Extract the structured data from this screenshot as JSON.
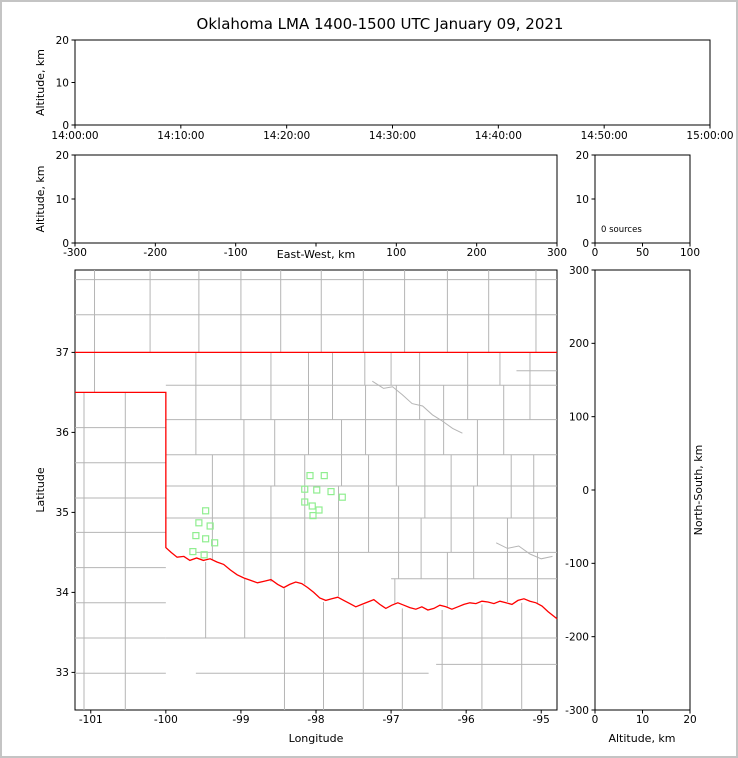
{
  "title": "Oklahoma LMA 1400-1500 UTC January 09, 2021",
  "colors": {
    "background": "#ffffff",
    "window_border": "#c4c4c4",
    "axes": "#000000",
    "county_lines": "#b5b5b5",
    "state_border": "#ff0000",
    "source_marker": "#90ee90"
  },
  "chart_data": [
    {
      "panel": "time-height",
      "type": "scatter",
      "ylabel": "Altitude, km",
      "ylim": [
        0,
        20
      ],
      "yticks": [
        0,
        10,
        20
      ],
      "xticks_time": [
        "14:00:00",
        "14:10:00",
        "14:20:00",
        "14:30:00",
        "14:40:00",
        "14:50:00",
        "15:00:00"
      ],
      "points": []
    },
    {
      "panel": "east-west-altitude",
      "type": "scatter",
      "xlabel": "East-West, km",
      "ylabel": "Altitude, km",
      "xlim": [
        -300,
        300
      ],
      "xticks": [
        -300,
        -200,
        -100,
        0,
        100,
        200,
        300
      ],
      "ylim": [
        0,
        20
      ],
      "yticks": [
        0,
        10,
        20
      ],
      "points": []
    },
    {
      "panel": "source-count-histogram",
      "type": "bar",
      "annotation": "0 sources",
      "xlim": [
        0,
        100
      ],
      "xticks": [
        0,
        50,
        100
      ],
      "ylim": [
        0,
        20
      ],
      "yticks": [
        0,
        10,
        20
      ],
      "values": []
    },
    {
      "panel": "plan-view-map",
      "type": "scatter",
      "xlabel": "Longitude",
      "ylabel": "Latitude",
      "xlim": [
        -101.21,
        -94.79
      ],
      "xticks": [
        -101,
        -100,
        -99,
        -98,
        -97,
        -96,
        -95
      ],
      "ylim": [
        32.53,
        38.03
      ],
      "yticks": [
        33,
        34,
        35,
        36,
        37
      ],
      "marker": "open-square",
      "points": [
        [
          -98.08,
          35.46
        ],
        [
          -97.89,
          35.46
        ],
        [
          -98.15,
          35.29
        ],
        [
          -97.99,
          35.28
        ],
        [
          -97.8,
          35.26
        ],
        [
          -97.65,
          35.19
        ],
        [
          -98.15,
          35.13
        ],
        [
          -98.05,
          35.08
        ],
        [
          -97.96,
          35.03
        ],
        [
          -98.04,
          34.96
        ],
        [
          -99.47,
          35.02
        ],
        [
          -99.56,
          34.87
        ],
        [
          -99.41,
          34.83
        ],
        [
          -99.6,
          34.71
        ],
        [
          -99.47,
          34.67
        ],
        [
          -99.35,
          34.62
        ],
        [
          -99.64,
          34.51
        ],
        [
          -99.49,
          34.47
        ]
      ]
    },
    {
      "panel": "altitude-north-south",
      "type": "scatter",
      "xlabel": "Altitude, km",
      "ylabel": "North-South, km",
      "xlim": [
        0,
        20
      ],
      "xticks": [
        0,
        10,
        20
      ],
      "ylim": [
        -300,
        300
      ],
      "yticks": [
        300,
        200,
        100,
        0,
        -100,
        -200,
        -300
      ],
      "points": []
    }
  ],
  "map_layers": {
    "state_border": [
      [
        [
          -101.21,
          37.0
        ],
        [
          -94.79,
          37.0
        ]
      ],
      [
        [
          -101.21,
          36.5
        ],
        [
          -100.0,
          36.5
        ],
        [
          -100.0,
          34.56
        ],
        [
          -99.93,
          34.5
        ],
        [
          -99.85,
          34.44
        ],
        [
          -99.76,
          34.45
        ],
        [
          -99.68,
          34.4
        ],
        [
          -99.59,
          34.43
        ],
        [
          -99.5,
          34.4
        ],
        [
          -99.41,
          34.42
        ],
        [
          -99.32,
          34.38
        ],
        [
          -99.23,
          34.35
        ],
        [
          -99.14,
          34.28
        ],
        [
          -99.05,
          34.22
        ],
        [
          -98.96,
          34.18
        ],
        [
          -98.87,
          34.15
        ],
        [
          -98.78,
          34.12
        ],
        [
          -98.69,
          34.14
        ],
        [
          -98.6,
          34.16
        ],
        [
          -98.51,
          34.1
        ],
        [
          -98.43,
          34.06
        ],
        [
          -98.35,
          34.1
        ],
        [
          -98.27,
          34.13
        ],
        [
          -98.19,
          34.11
        ],
        [
          -98.11,
          34.06
        ],
        [
          -98.03,
          34.0
        ],
        [
          -97.95,
          33.93
        ],
        [
          -97.87,
          33.9
        ],
        [
          -97.79,
          33.92
        ],
        [
          -97.71,
          33.94
        ],
        [
          -97.63,
          33.9
        ],
        [
          -97.55,
          33.86
        ],
        [
          -97.47,
          33.82
        ],
        [
          -97.39,
          33.85
        ],
        [
          -97.31,
          33.88
        ],
        [
          -97.23,
          33.91
        ],
        [
          -97.15,
          33.85
        ],
        [
          -97.07,
          33.8
        ],
        [
          -96.99,
          33.84
        ],
        [
          -96.91,
          33.87
        ],
        [
          -96.83,
          33.84
        ],
        [
          -96.75,
          33.81
        ],
        [
          -96.67,
          33.79
        ],
        [
          -96.59,
          33.82
        ],
        [
          -96.51,
          33.78
        ],
        [
          -96.43,
          33.8
        ],
        [
          -96.35,
          33.84
        ],
        [
          -96.27,
          33.82
        ],
        [
          -96.19,
          33.79
        ],
        [
          -96.11,
          33.82
        ],
        [
          -96.03,
          33.85
        ],
        [
          -95.95,
          33.87
        ],
        [
          -95.87,
          33.86
        ],
        [
          -95.79,
          33.89
        ],
        [
          -95.71,
          33.88
        ],
        [
          -95.63,
          33.86
        ],
        [
          -95.55,
          33.89
        ],
        [
          -95.47,
          33.87
        ],
        [
          -95.39,
          33.85
        ],
        [
          -95.31,
          33.9
        ],
        [
          -95.23,
          33.92
        ],
        [
          -95.15,
          33.89
        ],
        [
          -95.07,
          33.87
        ],
        [
          -94.99,
          33.83
        ],
        [
          -94.91,
          33.76
        ],
        [
          -94.79,
          33.67
        ]
      ]
    ],
    "county_segments": [
      [
        -101.21,
        37.47,
        -94.79,
        37.47
      ],
      [
        -101.21,
        37.91,
        -94.79,
        37.91
      ],
      [
        -100.95,
        37.0,
        -100.95,
        38.03
      ],
      [
        -100.21,
        37.0,
        -100.21,
        38.03
      ],
      [
        -99.56,
        37.0,
        -99.56,
        38.03
      ],
      [
        -99.0,
        37.0,
        -99.0,
        38.03
      ],
      [
        -98.47,
        37.0,
        -98.47,
        38.03
      ],
      [
        -97.93,
        37.0,
        -97.93,
        38.03
      ],
      [
        -97.37,
        37.0,
        -97.37,
        38.03
      ],
      [
        -96.82,
        37.0,
        -96.82,
        38.03
      ],
      [
        -96.25,
        37.0,
        -96.25,
        38.03
      ],
      [
        -95.7,
        37.0,
        -95.7,
        38.03
      ],
      [
        -95.07,
        37.0,
        -95.07,
        38.03
      ],
      [
        -100.95,
        36.5,
        -100.95,
        37.0
      ],
      [
        -101.09,
        36.5,
        -101.09,
        32.53
      ],
      [
        -100.54,
        36.5,
        -100.54,
        32.53
      ],
      [
        -101.21,
        36.06,
        -100.0,
        36.06
      ],
      [
        -101.21,
        35.62,
        -100.0,
        35.62
      ],
      [
        -101.21,
        35.18,
        -100.0,
        35.18
      ],
      [
        -101.21,
        34.75,
        -100.0,
        34.75
      ],
      [
        -101.21,
        34.31,
        -100.0,
        34.31
      ],
      [
        -101.21,
        33.87,
        -100.0,
        33.87
      ],
      [
        -101.21,
        33.43,
        -100.0,
        33.43
      ],
      [
        -101.21,
        32.99,
        -100.0,
        32.99
      ],
      [
        -100.0,
        33.43,
        -94.79,
        33.43
      ],
      [
        -99.6,
        32.99,
        -96.5,
        32.99
      ],
      [
        -96.4,
        33.1,
        -94.79,
        33.1
      ],
      [
        -99.47,
        34.38,
        -99.47,
        33.43
      ],
      [
        -98.95,
        34.17,
        -98.95,
        33.43
      ],
      [
        -98.42,
        34.05,
        -98.42,
        32.53
      ],
      [
        -97.9,
        33.88,
        -97.9,
        32.53
      ],
      [
        -97.37,
        33.84,
        -97.37,
        32.53
      ],
      [
        -96.85,
        33.8,
        -96.85,
        32.53
      ],
      [
        -96.32,
        33.78,
        -96.32,
        32.53
      ],
      [
        -95.79,
        33.85,
        -95.79,
        32.53
      ],
      [
        -95.26,
        33.87,
        -95.26,
        32.53
      ],
      [
        -100.0,
        36.59,
        -94.79,
        36.59
      ],
      [
        -100.0,
        36.16,
        -94.79,
        36.16
      ],
      [
        -100.0,
        35.72,
        -94.79,
        35.72
      ],
      [
        -100.0,
        35.33,
        -94.79,
        35.33
      ],
      [
        -100.0,
        34.93,
        -94.79,
        34.93
      ],
      [
        -99.6,
        34.5,
        -94.79,
        34.5
      ],
      [
        -97.0,
        34.17,
        -94.79,
        34.17
      ],
      [
        -95.33,
        36.77,
        -94.79,
        36.77
      ],
      [
        -99.6,
        37.0,
        -99.6,
        35.72
      ],
      [
        -99.38,
        35.72,
        -99.38,
        34.4
      ],
      [
        -99.0,
        37.0,
        -99.0,
        36.16
      ],
      [
        -98.96,
        36.16,
        -98.96,
        34.21
      ],
      [
        -98.6,
        37.0,
        -98.6,
        36.16
      ],
      [
        -98.55,
        36.16,
        -98.55,
        35.33
      ],
      [
        -98.6,
        35.33,
        -98.6,
        34.13
      ],
      [
        -98.1,
        37.0,
        -98.1,
        35.72
      ],
      [
        -98.15,
        35.72,
        -98.15,
        34.1
      ],
      [
        -97.78,
        37.0,
        -97.78,
        36.16
      ],
      [
        -97.66,
        36.16,
        -97.66,
        35.33
      ],
      [
        -97.7,
        35.33,
        -97.7,
        33.95
      ],
      [
        -97.35,
        37.0,
        -97.35,
        36.59
      ],
      [
        -97.34,
        36.59,
        -97.34,
        35.72
      ],
      [
        -97.3,
        35.72,
        -97.3,
        34.5
      ],
      [
        -97.0,
        37.0,
        -97.0,
        36.59
      ],
      [
        -96.93,
        36.59,
        -96.93,
        35.33
      ],
      [
        -96.9,
        35.33,
        -96.9,
        34.17
      ],
      [
        -96.95,
        34.17,
        -96.95,
        33.85
      ],
      [
        -96.62,
        37.0,
        -96.62,
        36.16
      ],
      [
        -96.55,
        36.16,
        -96.55,
        34.93
      ],
      [
        -96.6,
        34.93,
        -96.6,
        34.17
      ],
      [
        -96.3,
        36.59,
        -96.3,
        35.72
      ],
      [
        -96.2,
        35.72,
        -96.2,
        34.5
      ],
      [
        -96.25,
        34.5,
        -96.25,
        33.82
      ],
      [
        -95.98,
        37.0,
        -95.98,
        36.16
      ],
      [
        -95.85,
        36.16,
        -95.85,
        35.33
      ],
      [
        -95.9,
        35.33,
        -95.9,
        34.17
      ],
      [
        -95.55,
        37.0,
        -95.55,
        36.59
      ],
      [
        -95.5,
        36.59,
        -95.5,
        35.72
      ],
      [
        -95.4,
        35.72,
        -95.4,
        34.93
      ],
      [
        -95.45,
        34.93,
        -95.45,
        33.88
      ],
      [
        -95.15,
        37.0,
        -95.15,
        36.16
      ],
      [
        -95.1,
        35.72,
        -95.1,
        34.5
      ],
      [
        -95.05,
        34.5,
        -95.05,
        33.85
      ]
    ],
    "county_polylines": [
      [
        [
          -97.25,
          36.64
        ],
        [
          -97.1,
          36.55
        ],
        [
          -96.98,
          36.57
        ],
        [
          -96.85,
          36.47
        ],
        [
          -96.72,
          36.36
        ],
        [
          -96.58,
          36.33
        ],
        [
          -96.45,
          36.22
        ],
        [
          -96.33,
          36.15
        ],
        [
          -96.18,
          36.05
        ],
        [
          -96.05,
          35.99
        ]
      ],
      [
        [
          -95.6,
          34.62
        ],
        [
          -95.45,
          34.55
        ],
        [
          -95.3,
          34.58
        ],
        [
          -95.15,
          34.48
        ],
        [
          -95.0,
          34.42
        ],
        [
          -94.85,
          34.45
        ]
      ]
    ]
  }
}
